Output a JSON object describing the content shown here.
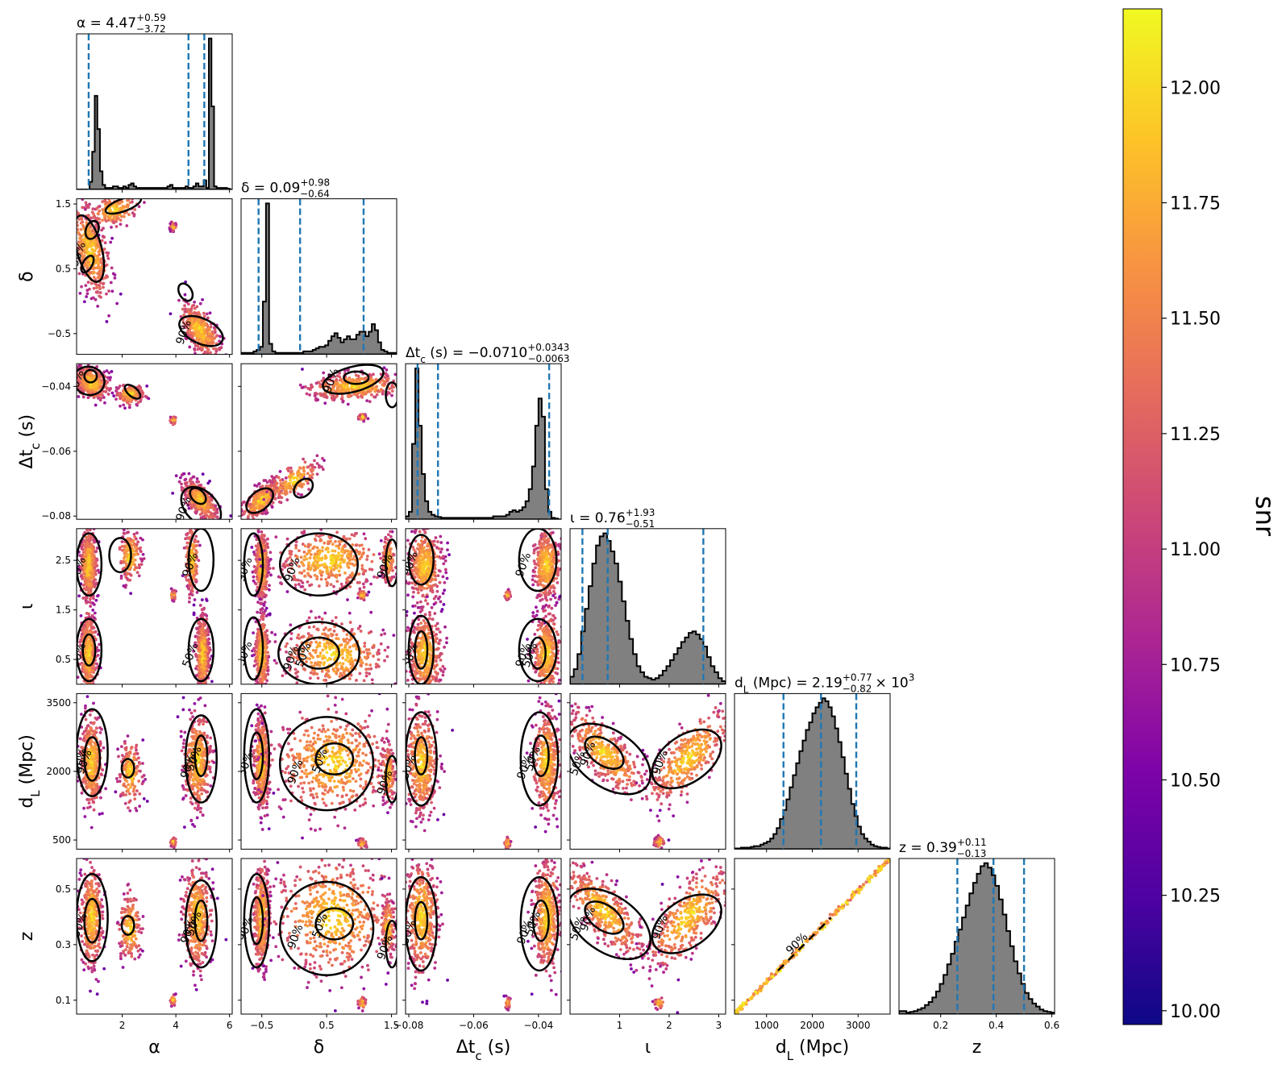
{
  "chart_data": {
    "type": "corner-plot",
    "colorbar": {
      "label": "snr",
      "colormap": "plasma",
      "range": [
        9.97,
        12.17
      ],
      "ticks": [
        "10.00",
        "10.25",
        "10.50",
        "10.75",
        "11.00",
        "11.25",
        "11.50",
        "11.75",
        "12.00"
      ],
      "tick_values": [
        10.0,
        10.25,
        10.5,
        10.75,
        11.0,
        11.25,
        11.5,
        11.75,
        12.0
      ]
    },
    "contour_levels": [
      "50%",
      "90%"
    ],
    "quantile_line_color": "#1f77b4",
    "histogram_fill_color": "#808080",
    "parameters": [
      {
        "key": "alpha",
        "label": "α",
        "title": "α = 4.47",
        "title_sup": "+0.59",
        "title_sub": "−3.72",
        "title_suffix": "",
        "range": [
          0.3,
          6.1
        ],
        "ticks": [
          2,
          4,
          6
        ],
        "tick_labels": [
          "2",
          "4",
          "6"
        ],
        "quantiles": [
          0.75,
          4.47,
          5.06
        ],
        "histogram": [
          0,
          0,
          0,
          0,
          0,
          0.05,
          0.25,
          0.62,
          0.4,
          0.12,
          0.03,
          0.01,
          0.01,
          0.01,
          0.02,
          0.02,
          0.01,
          0.01,
          0.02,
          0.01,
          0.03,
          0.04,
          0.02,
          0.01,
          0.01,
          0.01,
          0.01,
          0.01,
          0.01,
          0.01,
          0.01,
          0.01,
          0.01,
          0.01,
          0.01,
          0.02,
          0.03,
          0.01,
          0.01,
          0.01,
          0.01,
          0.01,
          0.02,
          0.01,
          0.01,
          0.02,
          0.04,
          0.02,
          0.02,
          0.06,
          0.01,
          1.0,
          0.55,
          0.02,
          0.01,
          0.01,
          0.01,
          0.01,
          0.005,
          0
        ]
      },
      {
        "key": "delta",
        "label": "δ",
        "title": "δ = 0.09",
        "title_sup": "+0.98",
        "title_sub": "−0.64",
        "title_suffix": "",
        "range": [
          -0.82,
          1.58
        ],
        "ticks": [
          -0.5,
          0.5,
          1.5
        ],
        "tick_labels": [
          "−0.5",
          "0.5",
          "1.5"
        ],
        "quantiles": [
          -0.55,
          0.09,
          1.07
        ],
        "histogram": [
          0.01,
          0.01,
          0.01,
          0.01,
          0.02,
          0.03,
          0.05,
          0.35,
          1.0,
          0.07,
          0.02,
          0.01,
          0.01,
          0.01,
          0.01,
          0.01,
          0.01,
          0.01,
          0.01,
          0.01,
          0.02,
          0.02,
          0.02,
          0.03,
          0.04,
          0.05,
          0.05,
          0.06,
          0.09,
          0.12,
          0.14,
          0.11,
          0.08,
          0.1,
          0.12,
          0.1,
          0.1,
          0.13,
          0.15,
          0.15,
          0.12,
          0.15,
          0.2,
          0.16,
          0.08,
          0.03,
          0.02,
          0.01,
          0.01,
          0.01
        ]
      },
      {
        "key": "dtc",
        "label": "Δt_c (s)",
        "title": "Δt_c (s) = −0.0710",
        "title_sup": "+0.0343",
        "title_sub": "−0.0063",
        "title_suffix": "",
        "range": [
          -0.081,
          -0.033
        ],
        "ticks": [
          -0.08,
          -0.06,
          -0.04
        ],
        "tick_labels": [
          "−0.08",
          "−0.06",
          "−0.04"
        ],
        "quantiles": [
          -0.0773,
          -0.071,
          -0.0367
        ],
        "histogram": [
          0.02,
          0.05,
          0.5,
          1.0,
          0.62,
          0.3,
          0.12,
          0.05,
          0.03,
          0.02,
          0.015,
          0.01,
          0.01,
          0.01,
          0.01,
          0.01,
          0.01,
          0.01,
          0.01,
          0.01,
          0.01,
          0.01,
          0.01,
          0.01,
          0.01,
          0.01,
          0.01,
          0.02,
          0.02,
          0.02,
          0.02,
          0.03,
          0.05,
          0.06,
          0.05,
          0.06,
          0.08,
          0.12,
          0.2,
          0.35,
          0.62,
          0.8,
          0.68,
          0.2,
          0.05,
          0.01,
          0.005,
          0
        ]
      },
      {
        "key": "iota",
        "label": "ι",
        "title": "ι = 0.76",
        "title_sup": "+1.93",
        "title_sub": "−0.51",
        "title_suffix": "",
        "range": [
          0.0,
          3.14
        ],
        "ticks": [
          1,
          2,
          3
        ],
        "tick_labels": [
          "1",
          "2",
          "3"
        ],
        "quantiles": [
          0.25,
          0.76,
          2.69
        ],
        "histogram": [
          0.05,
          0.1,
          0.2,
          0.35,
          0.5,
          0.65,
          0.8,
          0.92,
          0.98,
          1.0,
          0.95,
          0.88,
          0.8,
          0.68,
          0.55,
          0.42,
          0.3,
          0.2,
          0.12,
          0.08,
          0.05,
          0.04,
          0.03,
          0.04,
          0.06,
          0.09,
          0.12,
          0.16,
          0.2,
          0.24,
          0.28,
          0.31,
          0.34,
          0.35,
          0.33,
          0.3,
          0.25,
          0.18,
          0.12,
          0.08,
          0.04,
          0.02
        ]
      },
      {
        "key": "dL",
        "label": "d_L (Mpc)",
        "title": "d_L (Mpc) = 2.19",
        "title_sup": "+0.77",
        "title_sub": "−0.82",
        "title_suffix": "× 10",
        "title_suffix_sup": "3",
        "range": [
          300,
          3700
        ],
        "ticks": [
          1000,
          2000,
          3000
        ],
        "tick_labels": [
          "1000",
          "2000",
          "3000"
        ],
        "quantiles": [
          1370,
          2190,
          2960
        ],
        "histogram": [
          0.005,
          0.005,
          0.01,
          0.01,
          0.01,
          0.015,
          0.02,
          0.02,
          0.03,
          0.04,
          0.05,
          0.07,
          0.1,
          0.14,
          0.2,
          0.26,
          0.33,
          0.41,
          0.49,
          0.57,
          0.65,
          0.72,
          0.79,
          0.84,
          0.9,
          0.94,
          0.97,
          1.0,
          0.98,
          0.94,
          0.88,
          0.8,
          0.71,
          0.61,
          0.5,
          0.4,
          0.3,
          0.22,
          0.15,
          0.1,
          0.07,
          0.05,
          0.03,
          0.02,
          0.015,
          0.01,
          0.01,
          0.005
        ]
      },
      {
        "key": "z",
        "label": "z",
        "title": "z = 0.39",
        "title_sup": "+0.11",
        "title_sub": "−0.13",
        "title_suffix": "",
        "range": [
          0.05,
          0.61
        ],
        "ticks": [
          0.2,
          0.4,
          0.6
        ],
        "tick_labels": [
          "0.2",
          "0.4",
          "0.6"
        ],
        "quantiles": [
          0.26,
          0.39,
          0.5
        ],
        "histogram": [
          0.02,
          0.02,
          0.01,
          0.015,
          0.02,
          0.03,
          0.04,
          0.06,
          0.08,
          0.11,
          0.15,
          0.2,
          0.26,
          0.33,
          0.4,
          0.48,
          0.56,
          0.64,
          0.72,
          0.8,
          0.87,
          0.93,
          0.98,
          1.0,
          0.97,
          0.92,
          0.85,
          0.76,
          0.66,
          0.55,
          0.45,
          0.35,
          0.27,
          0.2,
          0.14,
          0.1,
          0.07,
          0.05,
          0.03,
          0.02,
          0.015,
          0.01
        ]
      }
    ],
    "row_tick_labels": {
      "delta": [
        "−0.5",
        "0.5",
        "1.5"
      ],
      "dtc": [
        "−0.08",
        "−0.06",
        "−0.04"
      ],
      "iota": [
        "0.5",
        "1.5",
        "2.5"
      ],
      "dL": [
        "500",
        "2000",
        "3500"
      ],
      "z": [
        "0.1",
        "0.3",
        "0.5"
      ]
    },
    "row_tick_values": {
      "delta": [
        -0.5,
        0.5,
        1.5
      ],
      "dtc": [
        -0.08,
        -0.06,
        -0.04
      ],
      "iota": [
        0.5,
        1.5,
        2.5
      ],
      "dL": [
        500,
        2000,
        3500
      ],
      "z": [
        0.1,
        0.3,
        0.5
      ]
    },
    "x_tick_labels_bottom": {
      "alpha": [
        "2",
        "4",
        "6"
      ],
      "delta": [
        "−0.5",
        "0.5",
        "1.5"
      ],
      "dtc": [
        "−0.08",
        "−0.06",
        "−0.04"
      ],
      "iota": [
        "1",
        "2",
        "3"
      ],
      "dL": [
        "1000",
        "2000",
        "3000"
      ],
      "z": [
        "0.2",
        "0.4",
        "0.6"
      ]
    },
    "x_tick_values_bottom": {
      "alpha": [
        2,
        4,
        6
      ],
      "delta": [
        -0.5,
        0.5,
        1.5
      ],
      "dtc": [
        -0.08,
        -0.06,
        -0.04
      ],
      "iota": [
        1,
        2,
        3
      ],
      "dL": [
        1000,
        2000,
        3000
      ],
      "z": [
        0.2,
        0.4,
        0.6
      ]
    },
    "bottom_axis_labels": [
      "α",
      "δ",
      "Δt_c (s)",
      "ι",
      "d_L (Mpc)",
      "z"
    ]
  }
}
